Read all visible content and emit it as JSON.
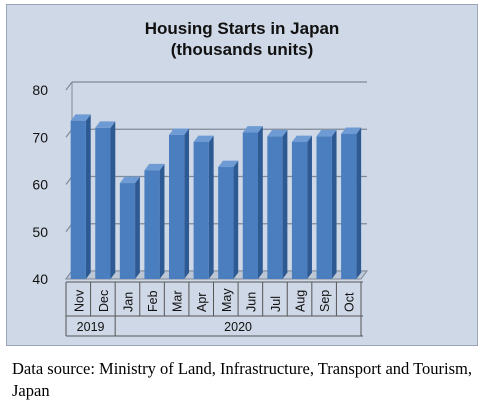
{
  "chart_data": {
    "type": "bar",
    "title": "Housing Starts in Japan",
    "subtitle": "(thousands units)",
    "categories": [
      "Nov",
      "Dec",
      "Jan",
      "Feb",
      "Mar",
      "Apr",
      "May",
      "Jun",
      "Jul",
      "Aug",
      "Sep",
      "Oct"
    ],
    "groups": [
      {
        "label": "2019",
        "categories": [
          "Nov",
          "Dec"
        ]
      },
      {
        "label": "2020",
        "categories": [
          "Jan",
          "Feb",
          "Mar",
          "Apr",
          "May",
          "Jun",
          "Jul",
          "Aug",
          "Sep",
          "Oct"
        ]
      }
    ],
    "series": [
      {
        "values": [
          73.5,
          72.0,
          60.3,
          63.0,
          70.5,
          69.0,
          63.7,
          71.0,
          70.2,
          69.0,
          70.2,
          70.7
        ]
      }
    ],
    "ylim": [
      40,
      80
    ],
    "yticks": [
      40,
      50,
      60,
      70,
      80
    ],
    "grid": true,
    "bar_color": "#4a7ebf",
    "background_color": "#cfd8e6"
  },
  "source_note": "Data source: Ministry of Land, Infrastructure, Transport and Tourism, Japan"
}
